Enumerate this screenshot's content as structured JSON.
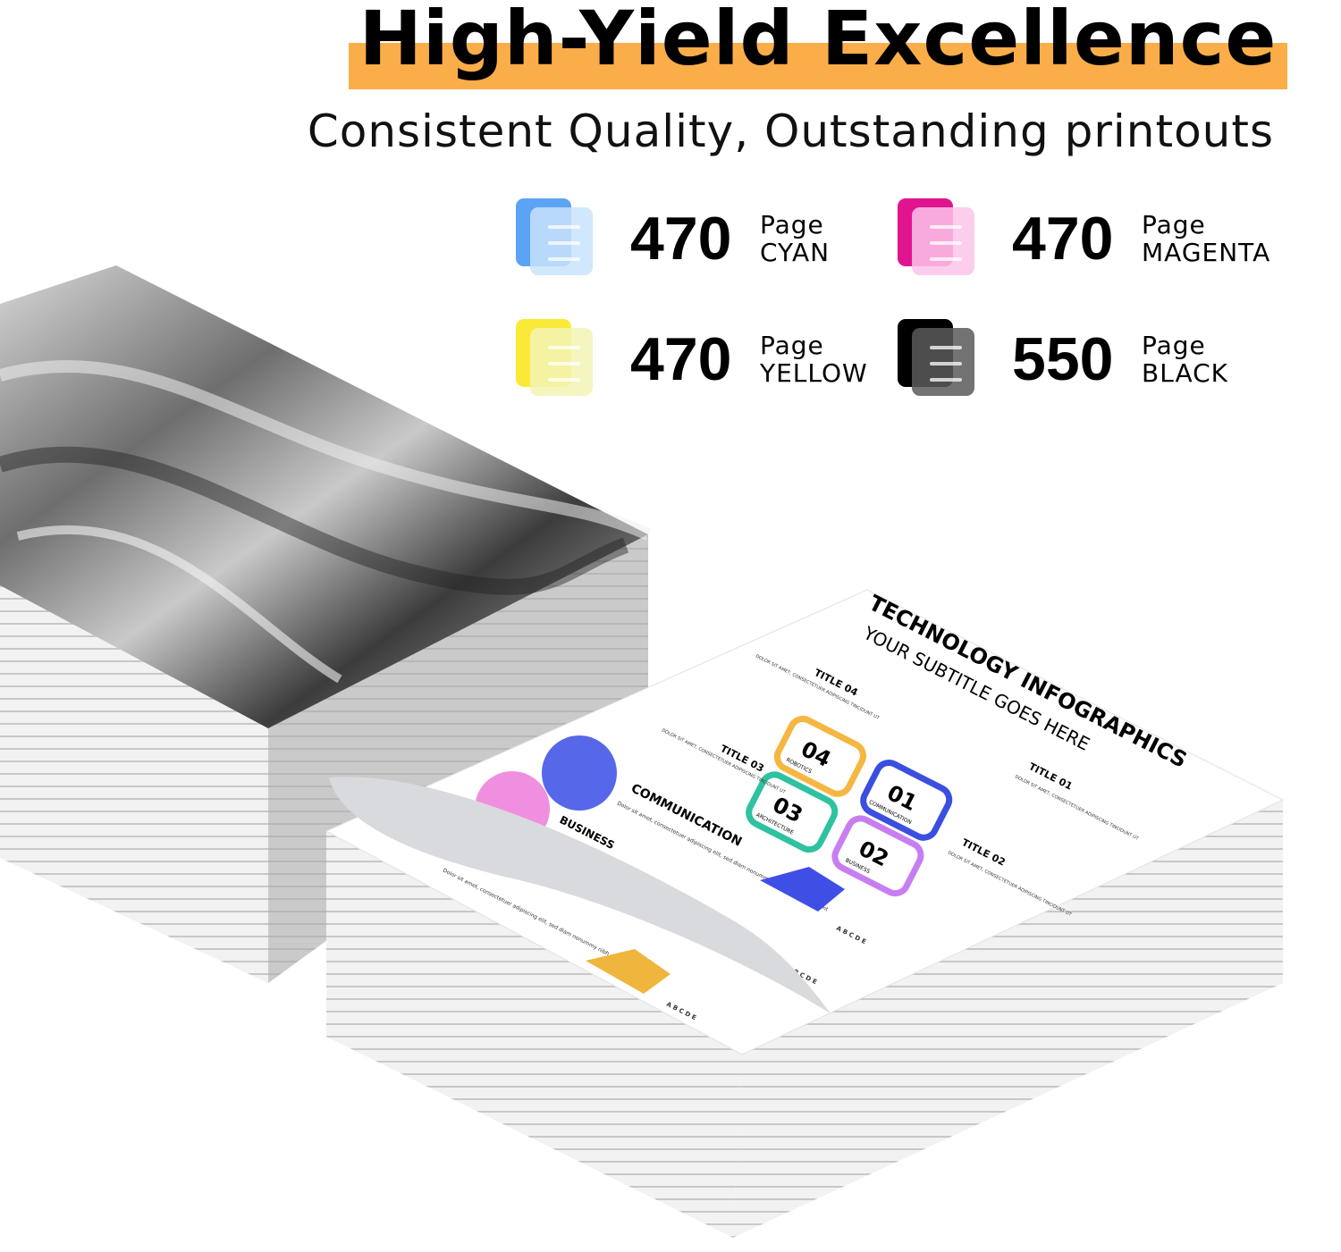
{
  "header": {
    "title": "High-Yield Excellence",
    "subtitle": "Consistent Quality, Outstanding printouts",
    "highlight_color": "#fbad4a"
  },
  "yields": [
    {
      "count": "470",
      "unit": "Page",
      "color_name": "CYAN",
      "icon": "document-stack-icon",
      "back": "#5aa3f5",
      "front": "#c9e3fb"
    },
    {
      "count": "470",
      "unit": "Page",
      "color_name": "MAGENTA",
      "icon": "document-stack-icon",
      "back": "#e0148f",
      "front": "#fbc4ea"
    },
    {
      "count": "470",
      "unit": "Page",
      "color_name": "YELLOW",
      "icon": "document-stack-icon",
      "back": "#fbe93a",
      "front": "#f3f3b4"
    },
    {
      "count": "550",
      "unit": "Page",
      "color_name": "BLACK",
      "icon": "document-stack-icon",
      "back": "#000000",
      "front": "#5a5a5a"
    }
  ],
  "infographic": {
    "title": "TECHNOLOGY INFOGRAPHICS",
    "subtitle": "YOUR SUBTITLE GOES HERE",
    "titles": [
      "TITLE 01",
      "TITLE 02",
      "TITLE 03",
      "TITLE 04"
    ],
    "body": "DOLOR SIT AMET, CONSECTETUER ADIPISCING TINCIDUNT UT",
    "steps": [
      {
        "num": "01",
        "label": "COMMUNICATION",
        "color": "#3a4fe0"
      },
      {
        "num": "02",
        "label": "BUSINESS",
        "color": "#c77ef0"
      },
      {
        "num": "03",
        "label": "ARCHITECTURE",
        "color": "#2fc2a0"
      },
      {
        "num": "04",
        "label": "ROBOTICS",
        "color": "#f5b642"
      }
    ],
    "section1": "COMMUNICATION",
    "section2": "BUSINESS",
    "lorem": "Dolor sit amet, consectetuer adipiscing elit, sed diam nonummy nibh euismod tincidunt",
    "letters": "A B C D E"
  }
}
